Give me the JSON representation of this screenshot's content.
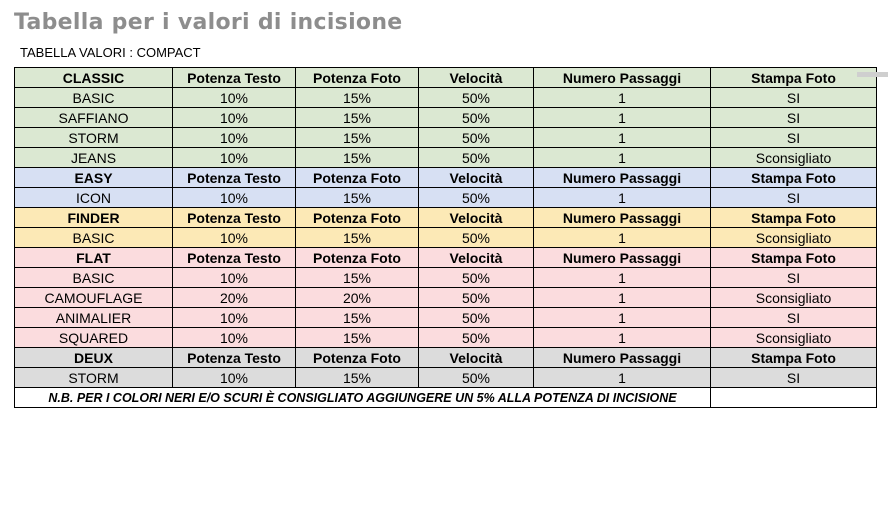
{
  "page": {
    "title": "Tabella per i valori di incisione",
    "subtitle": "TABELLA VALORI : COMPACT"
  },
  "colors": {
    "title_gray": "#8d8d8d",
    "section_classic": "#dbe8d2",
    "section_easy": "#d7e0f3",
    "section_finder": "#fce9b6",
    "section_flat": "#fbdcde",
    "section_deux": "#dcdcdc"
  },
  "table": {
    "column_headers": [
      "Potenza Testo",
      "Potenza Foto",
      "Velocità",
      "Numero Passaggi",
      "Stampa Foto"
    ],
    "sections": [
      {
        "name": "CLASSIC",
        "bg": "#dbe8d2",
        "rows": [
          [
            "BASIC",
            "10%",
            "15%",
            "50%",
            "1",
            "SI"
          ],
          [
            "SAFFIANO",
            "10%",
            "15%",
            "50%",
            "1",
            "SI"
          ],
          [
            "STORM",
            "10%",
            "15%",
            "50%",
            "1",
            "SI"
          ],
          [
            "JEANS",
            "10%",
            "15%",
            "50%",
            "1",
            "Sconsigliato"
          ]
        ]
      },
      {
        "name": "EASY",
        "bg": "#d7e0f3",
        "rows": [
          [
            "ICON",
            "10%",
            "15%",
            "50%",
            "1",
            "SI"
          ]
        ]
      },
      {
        "name": "FINDER",
        "bg": "#fce9b6",
        "rows": [
          [
            "BASIC",
            "10%",
            "15%",
            "50%",
            "1",
            "Sconsigliato"
          ]
        ]
      },
      {
        "name": "FLAT",
        "bg": "#fbdcde",
        "rows": [
          [
            "BASIC",
            "10%",
            "15%",
            "50%",
            "1",
            "SI"
          ],
          [
            "CAMOUFLAGE",
            "20%",
            "20%",
            "50%",
            "1",
            "Sconsigliato"
          ],
          [
            "ANIMALIER",
            "10%",
            "15%",
            "50%",
            "1",
            "SI"
          ],
          [
            "SQUARED",
            "10%",
            "15%",
            "50%",
            "1",
            "Sconsigliato"
          ]
        ]
      },
      {
        "name": "DEUX",
        "bg": "#dcdcdc",
        "rows": [
          [
            "STORM",
            "10%",
            "15%",
            "50%",
            "1",
            "SI"
          ]
        ]
      }
    ],
    "footer_note": "N.B. PER I COLORI NERI E/O SCURI È CONSIGLIATO AGGIUNGERE UN 5% ALLA POTENZA DI INCISIONE"
  }
}
